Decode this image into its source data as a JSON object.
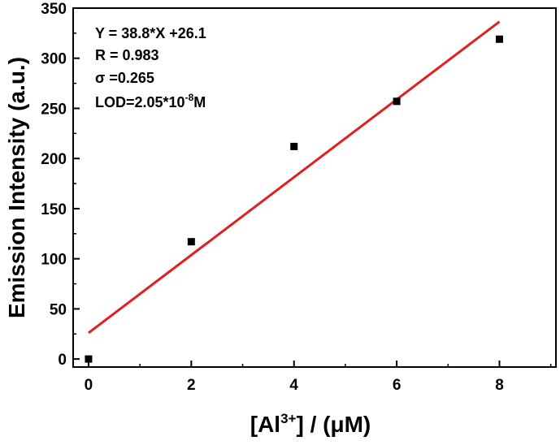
{
  "chart_data": {
    "type": "scatter",
    "title": "",
    "xlabel": "[Al3+] / (μM)",
    "xlabel_parts": {
      "prefix": "[Al",
      "sup": "3+",
      "suffix": "] / (μM)"
    },
    "ylabel": "Emission Intensity (a.u.)",
    "xlim": [
      -0.3,
      9.1
    ],
    "ylim": [
      -8,
      350
    ],
    "xticks": [
      0,
      2,
      4,
      6,
      8
    ],
    "xtick_labels": [
      "0",
      "2",
      "4",
      "6",
      "8"
    ],
    "yticks": [
      0,
      50,
      100,
      150,
      200,
      250,
      300,
      350
    ],
    "ytick_labels": [
      "0",
      "50",
      "100",
      "150",
      "200",
      "250",
      "300",
      "350"
    ],
    "grid": false,
    "series": [
      {
        "marker": "square",
        "color": "#000000",
        "x": [
          0,
          2,
          4,
          6,
          8
        ],
        "y": [
          0,
          117,
          212,
          257,
          319
        ]
      }
    ],
    "fit_line": {
      "color": "#e02020",
      "slope": 38.8,
      "intercept": 26.1,
      "x_range": [
        0,
        8
      ]
    },
    "annotations": {
      "equation": "Y = 38.8*X +26.1",
      "r": "R = 0.983",
      "sigma": "σ =0.265",
      "lod_prefix": "LOD=2.05*10",
      "lod_exp": "-8",
      "lod_suffix": "M"
    }
  }
}
